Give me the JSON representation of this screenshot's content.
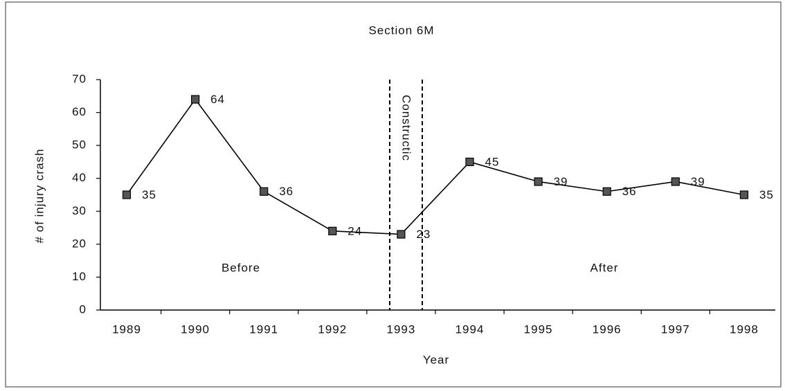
{
  "chart_data": {
    "type": "line",
    "title": "Section 6M",
    "x_label": "Year",
    "y_label": "# of injury crash",
    "categories": [
      "1989",
      "1990",
      "1991",
      "1992",
      "1993",
      "1994",
      "1995",
      "1996",
      "1997",
      "1998"
    ],
    "values": [
      35,
      64,
      36,
      24,
      23,
      45,
      39,
      36,
      39,
      35
    ],
    "color": "#000000",
    "ylim": [
      0,
      70
    ],
    "yticks": [
      0,
      10,
      20,
      30,
      40,
      50,
      60,
      70
    ],
    "annotations": [
      "Before",
      "Constructic",
      "After"
    ]
  }
}
